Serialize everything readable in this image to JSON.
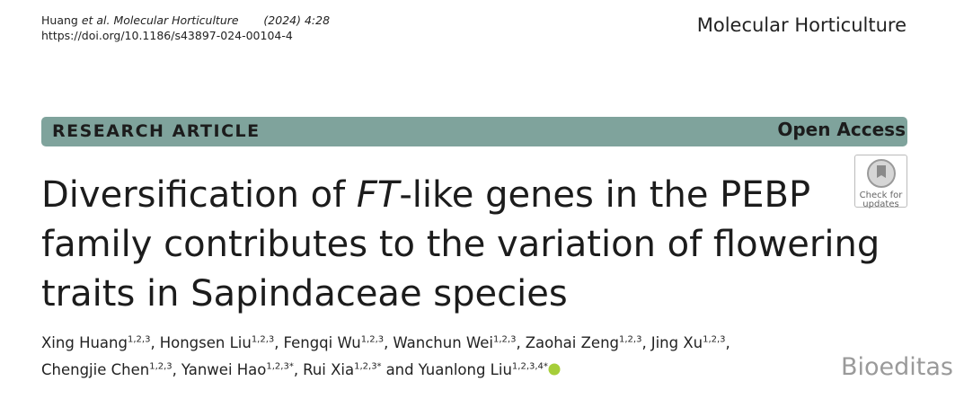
{
  "header": {
    "author": "Huang",
    "citation": "et al. Molecular Horticulture",
    "year": "(2024) 4:28",
    "doi": "https://doi.org/10.1186/s43897-024-00104-4",
    "journal": "Molecular Horticulture"
  },
  "banner": {
    "type": "RESEARCH ARTICLE",
    "access": "Open Access"
  },
  "title": {
    "line1_pre": "Diversification of ",
    "line1_italic": "FT",
    "line1_post": "-like genes in the PEBP",
    "line2": "family contributes to the variation of flowering",
    "line3": "traits in Sapindaceae species"
  },
  "badge": {
    "line1": "Check for",
    "line2": "updates"
  },
  "authors": [
    {
      "name": "Xing Huang",
      "affiliation": "1,2,3",
      "separator": ","
    },
    {
      "name": "Hongsen Liu",
      "affiliation": "1,2,3",
      "separator": ","
    },
    {
      "name": "Fengqi Wu",
      "affiliation": "1,2,3",
      "separator": ","
    },
    {
      "name": "Wanchun Wei",
      "affiliation": "1,2,3",
      "separator": ","
    },
    {
      "name": "Zaohai Zeng",
      "affiliation": "1,2,3",
      "separator": ","
    },
    {
      "name": "Jing Xu",
      "affiliation": "1,2,3",
      "separator": ","
    },
    {
      "name": "Chengjie Chen",
      "affiliation": "1,2,3",
      "separator": ","
    },
    {
      "name": "Yanwei Hao",
      "affiliation": "1,2,3*",
      "separator": ","
    },
    {
      "name": "Rui Xia",
      "affiliation": "1,2,3*",
      "separator": "and"
    },
    {
      "name": "Yuanlong Liu",
      "affiliation": "1,2,3,4*"
    }
  ],
  "watermark": "Bioeditas"
}
